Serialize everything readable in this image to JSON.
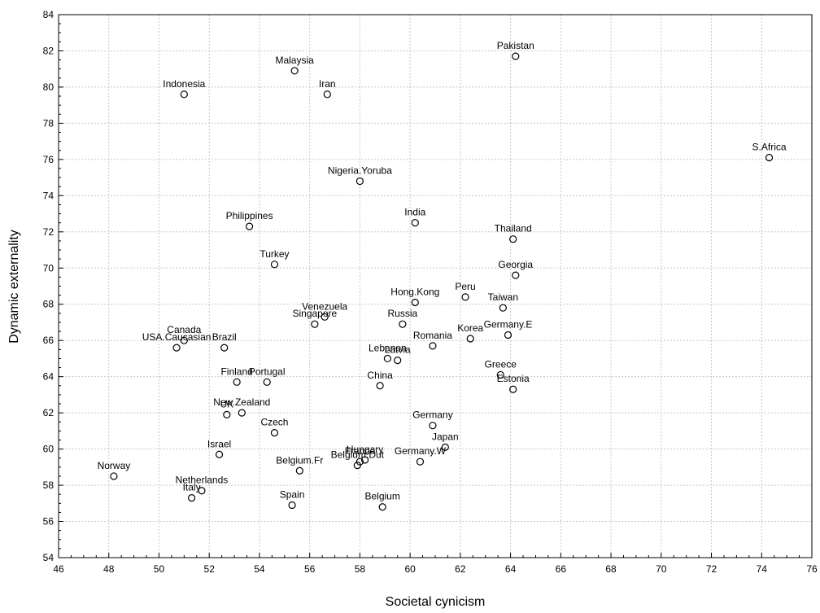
{
  "chart_data": {
    "type": "scatter",
    "xlabel": "Societal cynicism",
    "ylabel": "Dynamic externality",
    "xlim": [
      46,
      76
    ],
    "ylim": [
      54,
      84
    ],
    "xticks": [
      46,
      48,
      50,
      52,
      54,
      56,
      58,
      60,
      62,
      64,
      66,
      68,
      70,
      72,
      74,
      76
    ],
    "yticks": [
      54,
      56,
      58,
      60,
      62,
      64,
      66,
      68,
      70,
      72,
      74,
      76,
      78,
      80,
      82,
      84
    ],
    "grid": true,
    "points": [
      {
        "label": "Pakistan",
        "x": 64.2,
        "y": 81.7
      },
      {
        "label": "Malaysia",
        "x": 55.4,
        "y": 80.9
      },
      {
        "label": "Indonesia",
        "x": 51.0,
        "y": 79.6
      },
      {
        "label": "Iran",
        "x": 56.7,
        "y": 79.6
      },
      {
        "label": "S.Africa",
        "x": 74.3,
        "y": 76.1
      },
      {
        "label": "Nigeria.Yoruba",
        "x": 58.0,
        "y": 74.8
      },
      {
        "label": "India",
        "x": 60.2,
        "y": 72.5
      },
      {
        "label": "Philippines",
        "x": 53.6,
        "y": 72.3
      },
      {
        "label": "Thailand",
        "x": 64.1,
        "y": 71.6
      },
      {
        "label": "Turkey",
        "x": 54.6,
        "y": 70.2
      },
      {
        "label": "Georgia",
        "x": 64.2,
        "y": 69.6
      },
      {
        "label": "Peru",
        "x": 62.2,
        "y": 68.4
      },
      {
        "label": "Hong.Kong",
        "x": 60.2,
        "y": 68.1
      },
      {
        "label": "Taiwan",
        "x": 63.7,
        "y": 67.8
      },
      {
        "label": "Venezuela",
        "x": 56.6,
        "y": 67.3
      },
      {
        "label": "Singapore",
        "x": 56.2,
        "y": 66.9
      },
      {
        "label": "Russia",
        "x": 59.7,
        "y": 66.9
      },
      {
        "label": "Germany.E",
        "x": 63.9,
        "y": 66.3
      },
      {
        "label": "Korea",
        "x": 62.4,
        "y": 66.1
      },
      {
        "label": "Romania",
        "x": 60.9,
        "y": 65.7
      },
      {
        "label": "Canada",
        "x": 51.0,
        "y": 66.0
      },
      {
        "label": "USA.Caucasian",
        "x": 50.7,
        "y": 65.6
      },
      {
        "label": "Brazil",
        "x": 52.6,
        "y": 65.6
      },
      {
        "label": "Lebanon",
        "x": 59.1,
        "y": 65.0
      },
      {
        "label": "Latvia",
        "x": 59.5,
        "y": 64.9
      },
      {
        "label": "Greece",
        "x": 63.6,
        "y": 64.1
      },
      {
        "label": "Finland",
        "x": 53.1,
        "y": 63.7
      },
      {
        "label": "Portugal",
        "x": 54.3,
        "y": 63.7
      },
      {
        "label": "China",
        "x": 58.8,
        "y": 63.5
      },
      {
        "label": "Estonia",
        "x": 64.1,
        "y": 63.3
      },
      {
        "label": "UK",
        "x": 52.7,
        "y": 61.9
      },
      {
        "label": "New.Zealand",
        "x": 53.3,
        "y": 62.0
      },
      {
        "label": "Germany",
        "x": 60.9,
        "y": 61.3
      },
      {
        "label": "Czech",
        "x": 54.6,
        "y": 60.9
      },
      {
        "label": "Japan",
        "x": 61.4,
        "y": 60.1
      },
      {
        "label": "Israel",
        "x": 52.4,
        "y": 59.7
      },
      {
        "label": "Hungary",
        "x": 58.2,
        "y": 59.4
      },
      {
        "label": "France",
        "x": 58.0,
        "y": 59.3
      },
      {
        "label": "Germany.W",
        "x": 60.4,
        "y": 59.3
      },
      {
        "label": "Belgium.Dut",
        "x": 57.9,
        "y": 59.1
      },
      {
        "label": "Belgium.Fr",
        "x": 55.6,
        "y": 58.8
      },
      {
        "label": "Norway",
        "x": 48.2,
        "y": 58.5
      },
      {
        "label": "Netherlands",
        "x": 51.7,
        "y": 57.7
      },
      {
        "label": "Italy",
        "x": 51.3,
        "y": 57.3
      },
      {
        "label": "Spain",
        "x": 55.3,
        "y": 56.9
      },
      {
        "label": "Belgium",
        "x": 58.9,
        "y": 56.8
      }
    ]
  }
}
